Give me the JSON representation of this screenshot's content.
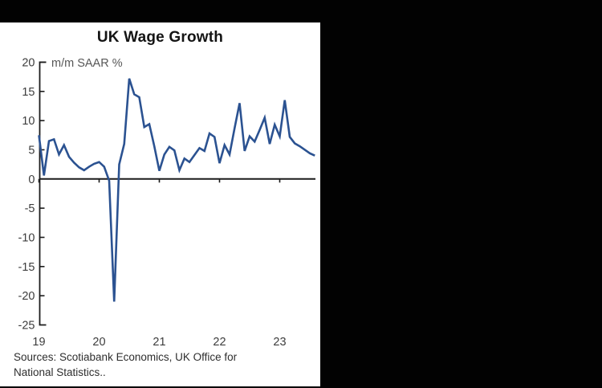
{
  "window": {
    "top_bar_color": "#020202",
    "side_color": "#020202",
    "panel_color": "#ffffff"
  },
  "chart": {
    "title": "UK Wage Growth",
    "subtitle": "m/m SAAR %",
    "sources_line1": "Sources: Scotiabank Economics, UK Office for",
    "sources_line2": "National Statistics.."
  },
  "chart_data": {
    "type": "line",
    "title": "UK Wage Growth",
    "annotation": "m/m SAAR %",
    "x_unit": "month",
    "start": "2019-01",
    "end": "2023-08",
    "x_tick_labels": [
      "19",
      "20",
      "21",
      "22",
      "23"
    ],
    "x_tick_month_index": [
      0,
      12,
      24,
      36,
      48
    ],
    "y_ticks": [
      20,
      15,
      10,
      5,
      0,
      -5,
      -10,
      -15,
      -20,
      -25
    ],
    "ylim": [
      -25,
      20
    ],
    "grid": "off",
    "legend": "none",
    "line_color": "#2b5291",
    "axis_color": "#1c1c1c",
    "tick_label_color": "#3d3d3d",
    "series": [
      {
        "name": "UK wage growth, m/m SAAR %",
        "values": [
          7.5,
          0.6,
          6.5,
          6.8,
          4.2,
          5.8,
          3.8,
          2.8,
          2.0,
          1.5,
          2.1,
          2.6,
          2.9,
          2.1,
          -0.3,
          -21.0,
          2.5,
          6.0,
          17.2,
          14.5,
          14.0,
          8.9,
          9.4,
          5.6,
          1.4,
          4.2,
          5.5,
          4.9,
          1.5,
          3.5,
          2.9,
          4.1,
          5.3,
          4.8,
          7.8,
          7.2,
          2.7,
          5.8,
          4.2,
          8.7,
          13.0,
          4.8,
          7.3,
          6.4,
          8.4,
          10.5,
          6.0,
          9.3,
          7.3,
          13.5,
          7.2,
          6.1,
          5.6,
          5.0,
          4.4,
          4.0
        ]
      }
    ]
  }
}
